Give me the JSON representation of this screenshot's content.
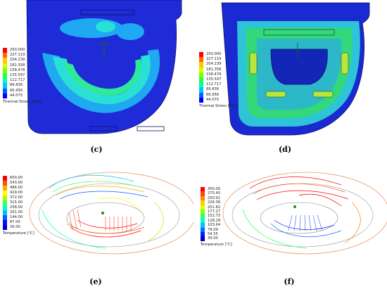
{
  "panels": [
    {
      "id": "c",
      "caption": "(c)",
      "legend_title": "Thermal Stress [MPa]",
      "legend_values": [
        "250.000",
        "227.119",
        "204.239",
        "181.358",
        "158.478",
        "135.597",
        "112.717",
        "89.836",
        "66.956",
        "44.075"
      ]
    },
    {
      "id": "d",
      "caption": "(d)",
      "legend_title": "Thermal Stress [MPa]",
      "legend_values": [
        "250.000",
        "227.119",
        "204.239",
        "181.358",
        "158.478",
        "135.597",
        "112.717",
        "89.836",
        "66.956",
        "44.075"
      ]
    },
    {
      "id": "e",
      "caption": "(e)",
      "legend_title": "Temperature [°C]",
      "legend_values": [
        "600.00",
        "543.00",
        "486.00",
        "429.00",
        "372.00",
        "315.00",
        "258.00",
        "201.00",
        "144.00",
        "87.00",
        "30.00"
      ]
    },
    {
      "id": "f",
      "caption": "(f)",
      "legend_title": "Temperature [°C]",
      "legend_values": [
        "300.00",
        "275.45",
        "250.91",
        "226.36",
        "201.82",
        "177.27",
        "152.73",
        "128.18",
        "103.64",
        "79.09",
        "54.55",
        "30.00"
      ]
    }
  ],
  "colors": {
    "stress_scale": [
      "#ff0000",
      "#ff6a00",
      "#ffc800",
      "#d2ff00",
      "#7cff00",
      "#26ff3a",
      "#00ffb0",
      "#00c8ff",
      "#0060ff",
      "#0000ff"
    ],
    "temp_scale_e": [
      "#ff0000",
      "#ff5500",
      "#ffaa00",
      "#ffff00",
      "#a8ff00",
      "#40ff50",
      "#00ffc0",
      "#00c0ff",
      "#0060ff",
      "#0010ff",
      "#0000c0"
    ],
    "temp_scale_f": [
      "#ff0000",
      "#ff4400",
      "#ff8800",
      "#ffcc00",
      "#ddff00",
      "#88ff00",
      "#30ff60",
      "#00ffcc",
      "#00c0ff",
      "#0070ff",
      "#0020ff",
      "#0000c0"
    ]
  }
}
